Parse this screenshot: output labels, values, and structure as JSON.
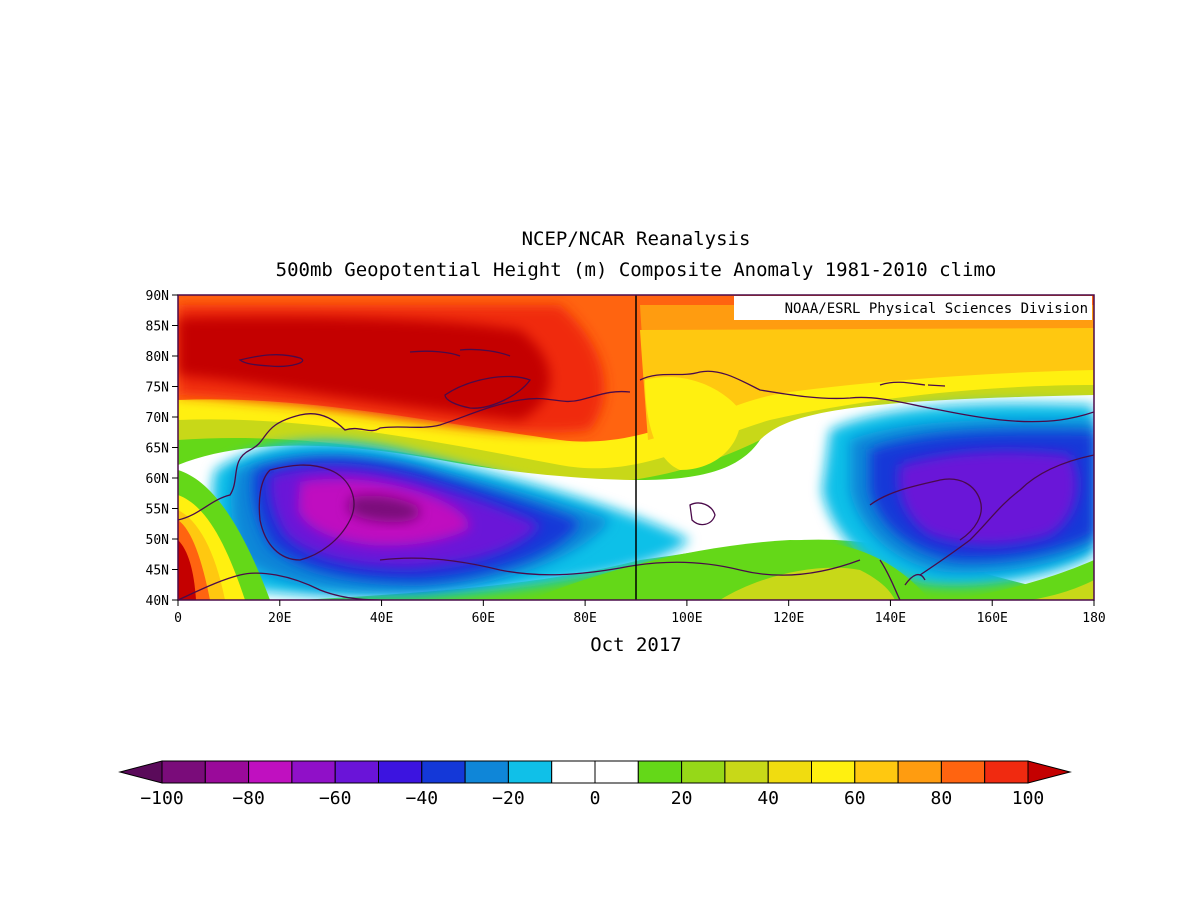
{
  "title": "NCEP/NCAR Reanalysis",
  "subtitle": "500mb Geopotential Height (m) Composite Anomaly 1981-2010 climo",
  "credit": "NOAA/ESRL Physical Sciences Division",
  "period": "Oct 2017",
  "map": {
    "lon_range": [
      0,
      180
    ],
    "lat_range": [
      40,
      90
    ],
    "lon_ticks": [
      "0",
      "20E",
      "40E",
      "60E",
      "80E",
      "100E",
      "120E",
      "140E",
      "160E",
      "180"
    ],
    "lat_ticks": [
      "90N",
      "85N",
      "80N",
      "75N",
      "70N",
      "65N",
      "60N",
      "55N",
      "50N",
      "45N",
      "40N"
    ],
    "meridian_line_lon": 90
  },
  "colorbar": {
    "labels": [
      "-100",
      "-80",
      "-60",
      "-40",
      "-20",
      "0",
      "20",
      "40",
      "60",
      "80",
      "100"
    ],
    "colors": [
      "#5a0a5a",
      "#7a0c7a",
      "#9a0a9a",
      "#c010c0",
      "#9010c8",
      "#6a14d8",
      "#3c14e0",
      "#1438d8",
      "#0f86d8",
      "#10c0e8",
      "#ffffff",
      "#ffffff",
      "#64d818",
      "#96d818",
      "#c8d818",
      "#f0dc10",
      "#fff010",
      "#ffc810",
      "#ff9c10",
      "#ff6410",
      "#f02a10",
      "#c40000"
    ]
  }
}
